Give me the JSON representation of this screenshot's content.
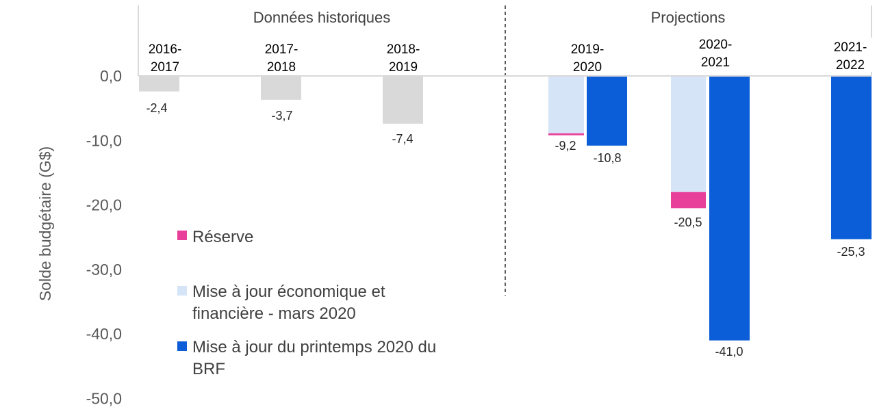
{
  "chart_data": {
    "type": "bar",
    "ylabel": "Solde budgétaire (G$)",
    "ylim": [
      -50,
      0
    ],
    "yticks": [
      "0,0",
      "-10,0",
      "-20,0",
      "-30,0",
      "-40,0",
      "-50,0"
    ],
    "ytick_values": [
      0,
      -10,
      -20,
      -30,
      -40,
      -50
    ],
    "sections": [
      "Données historiques",
      "Projections"
    ],
    "categories": [
      "2016-\n2017",
      "2017-\n2018",
      "2018-\n2019",
      "2019-\n2020",
      "2020-\n2021",
      "2021-\n2022"
    ],
    "series": [
      {
        "name": "Réserve",
        "color": "#e8409a",
        "values": [
          null,
          null,
          null,
          -0.3,
          -2.5,
          null
        ]
      },
      {
        "name": "Mise à jour économique et\nfinancière - mars 2020",
        "color": "#d6e4f8",
        "values": [
          null,
          null,
          null,
          -8.9,
          -18.0,
          null
        ]
      },
      {
        "name": "Mise à jour du printemps 2020 du\nBRF",
        "color": "#0b5ed7",
        "values": [
          null,
          null,
          null,
          -10.8,
          -41.0,
          -25.3
        ]
      },
      {
        "name": "Données historiques",
        "color": "#d9d9d9",
        "values": [
          -2.4,
          -3.7,
          -7.4,
          null,
          null,
          null
        ]
      }
    ],
    "data_labels": [
      "-2,4",
      "-3,7",
      "-7,4",
      "-9,2",
      "-10,8",
      "-20,5",
      "-41,0",
      "-25,3"
    ],
    "legend": "bottom-left"
  }
}
